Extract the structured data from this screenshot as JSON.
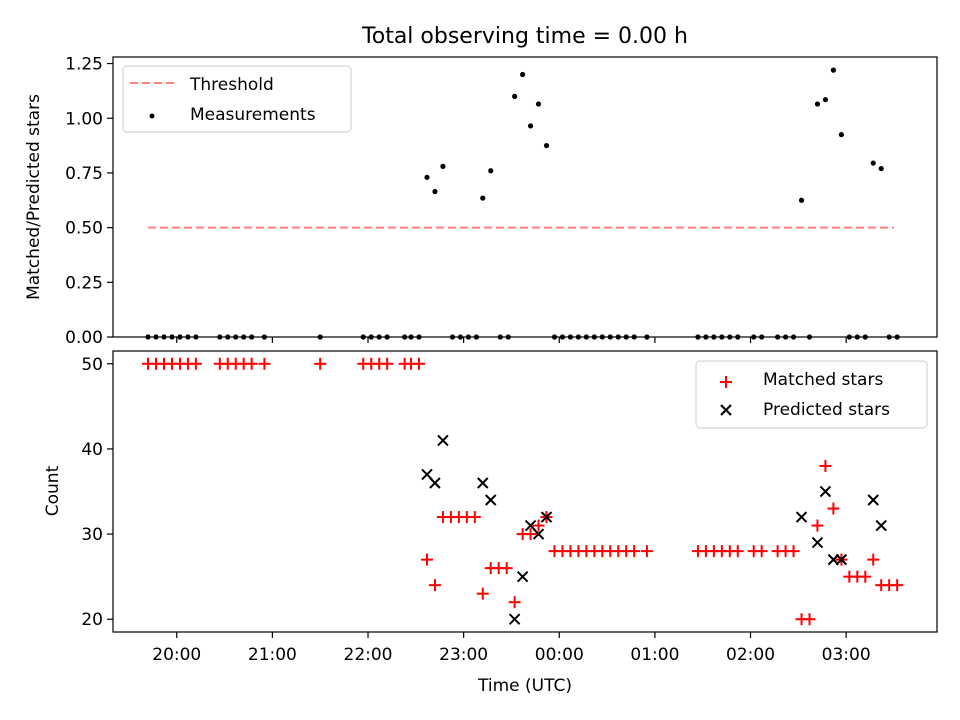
{
  "chart_data": [
    {
      "type": "scatter",
      "title": "Total observing time = 0.00 h",
      "xlabel": "",
      "ylabel": "Matched/Predicted stars",
      "xlim": [
        "19:20",
        "03:57"
      ],
      "ylim": [
        0,
        1.28
      ],
      "yticks": [
        "0.00",
        "0.25",
        "0.50",
        "0.75",
        "1.00",
        "1.25"
      ],
      "grid": false,
      "legend": {
        "location": "upper-left",
        "entries": [
          "Threshold",
          "Measurements"
        ]
      },
      "threshold": {
        "name": "Threshold",
        "y": 0.5,
        "x": [
          "19:42",
          "03:30"
        ],
        "color": "#ff7f7f",
        "style": "dashed"
      },
      "measurements": {
        "name": "Measurements",
        "color": "#000000",
        "points": [
          [
            "19:42",
            0
          ],
          [
            "19:47",
            0
          ],
          [
            "19:52",
            0
          ],
          [
            "19:57",
            0
          ],
          [
            "20:02",
            0
          ],
          [
            "20:07",
            0
          ],
          [
            "20:12",
            0
          ],
          [
            "20:27",
            0
          ],
          [
            "20:32",
            0
          ],
          [
            "20:37",
            0
          ],
          [
            "20:42",
            0
          ],
          [
            "20:47",
            0
          ],
          [
            "20:55",
            0
          ],
          [
            "21:30",
            0
          ],
          [
            "21:57",
            0
          ],
          [
            "22:02",
            0
          ],
          [
            "22:07",
            0
          ],
          [
            "22:12",
            0
          ],
          [
            "22:23",
            0
          ],
          [
            "22:27",
            0
          ],
          [
            "22:32",
            0
          ],
          [
            "22:37",
            0.73
          ],
          [
            "22:42",
            0.665
          ],
          [
            "22:47",
            0.78
          ],
          [
            "22:53",
            0
          ],
          [
            "22:58",
            0
          ],
          [
            "23:03",
            0
          ],
          [
            "23:08",
            0
          ],
          [
            "23:12",
            0.635
          ],
          [
            "23:17",
            0.76
          ],
          [
            "23:23",
            0
          ],
          [
            "23:28",
            0
          ],
          [
            "23:32",
            1.1
          ],
          [
            "23:37",
            1.2
          ],
          [
            "23:42",
            0.965
          ],
          [
            "23:47",
            1.065
          ],
          [
            "23:52",
            0.875
          ],
          [
            "23:57",
            0
          ],
          [
            "00:02",
            0
          ],
          [
            "00:07",
            0
          ],
          [
            "00:12",
            0
          ],
          [
            "00:17",
            0
          ],
          [
            "00:22",
            0
          ],
          [
            "00:27",
            0
          ],
          [
            "00:32",
            0
          ],
          [
            "00:37",
            0
          ],
          [
            "00:42",
            0
          ],
          [
            "00:47",
            0
          ],
          [
            "00:55",
            0
          ],
          [
            "01:27",
            0
          ],
          [
            "01:32",
            0
          ],
          [
            "01:37",
            0
          ],
          [
            "01:42",
            0
          ],
          [
            "01:47",
            0
          ],
          [
            "01:52",
            0
          ],
          [
            "02:02",
            0
          ],
          [
            "02:07",
            0
          ],
          [
            "02:17",
            0
          ],
          [
            "02:22",
            0
          ],
          [
            "02:27",
            0
          ],
          [
            "02:32",
            0.625
          ],
          [
            "02:37",
            0
          ],
          [
            "02:42",
            1.065
          ],
          [
            "02:47",
            1.085
          ],
          [
            "02:52",
            1.22
          ],
          [
            "02:57",
            0.925
          ],
          [
            "03:02",
            0
          ],
          [
            "03:07",
            0
          ],
          [
            "03:12",
            0
          ],
          [
            "03:17",
            0.795
          ],
          [
            "03:22",
            0.77
          ],
          [
            "03:27",
            0
          ],
          [
            "03:32",
            0
          ]
        ]
      }
    },
    {
      "type": "scatter",
      "title": "",
      "xlabel": "Time (UTC)",
      "ylabel": "Count",
      "xlim": [
        "19:20",
        "03:57"
      ],
      "ylim": [
        18.5,
        51.5
      ],
      "yticks": [
        "20",
        "30",
        "40",
        "50"
      ],
      "xticks": [
        "20:00",
        "21:00",
        "22:00",
        "23:00",
        "00:00",
        "01:00",
        "02:00",
        "03:00"
      ],
      "grid": false,
      "legend": {
        "location": "upper-right",
        "entries": [
          "Matched stars",
          "Predicted stars"
        ]
      },
      "series": [
        {
          "name": "Matched stars",
          "marker": "plus",
          "color": "#ff0000",
          "points": [
            [
              "19:42",
              50
            ],
            [
              "19:47",
              50
            ],
            [
              "19:52",
              50
            ],
            [
              "19:57",
              50
            ],
            [
              "20:02",
              50
            ],
            [
              "20:07",
              50
            ],
            [
              "20:12",
              50
            ],
            [
              "20:27",
              50
            ],
            [
              "20:32",
              50
            ],
            [
              "20:37",
              50
            ],
            [
              "20:42",
              50
            ],
            [
              "20:47",
              50
            ],
            [
              "20:55",
              50
            ],
            [
              "21:30",
              50
            ],
            [
              "21:57",
              50
            ],
            [
              "22:02",
              50
            ],
            [
              "22:07",
              50
            ],
            [
              "22:12",
              50
            ],
            [
              "22:23",
              50
            ],
            [
              "22:27",
              50
            ],
            [
              "22:32",
              50
            ],
            [
              "22:37",
              27
            ],
            [
              "22:42",
              24
            ],
            [
              "22:47",
              32
            ],
            [
              "22:52",
              32
            ],
            [
              "22:57",
              32
            ],
            [
              "23:02",
              32
            ],
            [
              "23:07",
              32
            ],
            [
              "23:12",
              23
            ],
            [
              "23:17",
              26
            ],
            [
              "23:22",
              26
            ],
            [
              "23:27",
              26
            ],
            [
              "23:32",
              22
            ],
            [
              "23:37",
              30
            ],
            [
              "23:42",
              30
            ],
            [
              "23:47",
              31
            ],
            [
              "23:52",
              32
            ],
            [
              "23:57",
              28
            ],
            [
              "00:02",
              28
            ],
            [
              "00:07",
              28
            ],
            [
              "00:12",
              28
            ],
            [
              "00:17",
              28
            ],
            [
              "00:22",
              28
            ],
            [
              "00:27",
              28
            ],
            [
              "00:32",
              28
            ],
            [
              "00:37",
              28
            ],
            [
              "00:42",
              28
            ],
            [
              "00:47",
              28
            ],
            [
              "00:55",
              28
            ],
            [
              "01:27",
              28
            ],
            [
              "01:32",
              28
            ],
            [
              "01:37",
              28
            ],
            [
              "01:42",
              28
            ],
            [
              "01:47",
              28
            ],
            [
              "01:52",
              28
            ],
            [
              "02:02",
              28
            ],
            [
              "02:07",
              28
            ],
            [
              "02:17",
              28
            ],
            [
              "02:22",
              28
            ],
            [
              "02:27",
              28
            ],
            [
              "02:32",
              20
            ],
            [
              "02:37",
              20
            ],
            [
              "02:42",
              31
            ],
            [
              "02:47",
              38
            ],
            [
              "02:52",
              33
            ],
            [
              "02:57",
              27
            ],
            [
              "03:02",
              25
            ],
            [
              "03:07",
              25
            ],
            [
              "03:12",
              25
            ],
            [
              "03:17",
              27
            ],
            [
              "03:22",
              24
            ],
            [
              "03:27",
              24
            ],
            [
              "03:32",
              24
            ]
          ]
        },
        {
          "name": "Predicted stars",
          "marker": "x",
          "color": "#000000",
          "points": [
            [
              "22:37",
              37
            ],
            [
              "22:42",
              36
            ],
            [
              "22:47",
              41
            ],
            [
              "23:12",
              36
            ],
            [
              "23:17",
              34
            ],
            [
              "23:32",
              20
            ],
            [
              "23:37",
              25
            ],
            [
              "23:42",
              31
            ],
            [
              "23:47",
              30
            ],
            [
              "23:52",
              32
            ],
            [
              "02:32",
              32
            ],
            [
              "02:42",
              29
            ],
            [
              "02:47",
              35
            ],
            [
              "02:52",
              27
            ],
            [
              "02:57",
              27
            ],
            [
              "03:17",
              34
            ],
            [
              "03:22",
              31
            ]
          ]
        }
      ]
    }
  ]
}
